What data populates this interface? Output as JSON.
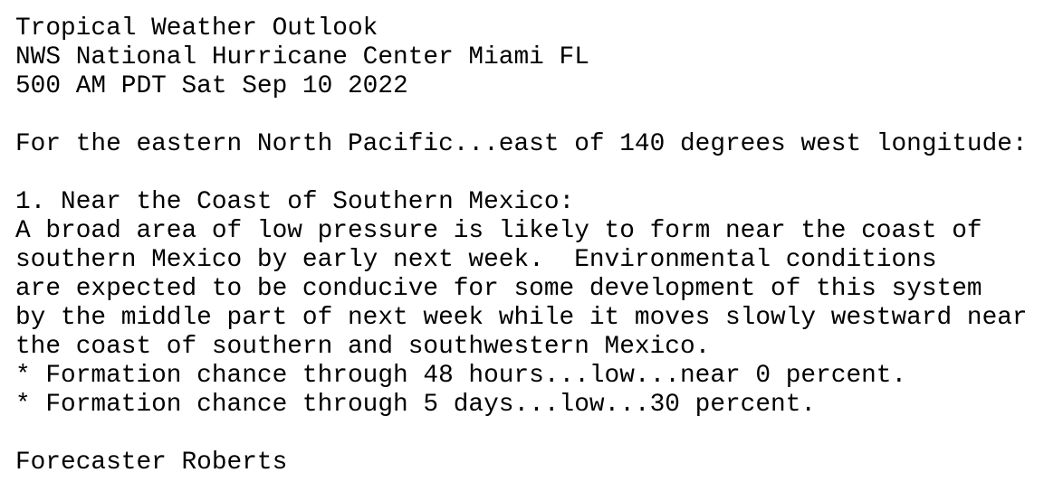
{
  "header": {
    "title": "Tropical Weather Outlook",
    "office": "NWS National Hurricane Center Miami FL",
    "issued": "500 AM PDT Sat Sep 10 2022"
  },
  "scope": "For the eastern North Pacific...east of 140 degrees west longitude:",
  "systems": [
    {
      "heading": "1. Near the Coast of Southern Mexico:",
      "body": [
        "A broad area of low pressure is likely to form near the coast of",
        "southern Mexico by early next week.  Environmental conditions",
        "are expected to be conducive for some development of this system",
        "by the middle part of next week while it moves slowly westward near",
        "the coast of southern and southwestern Mexico."
      ],
      "chances": [
        "* Formation chance through 48 hours...low...near 0 percent.",
        "* Formation chance through 5 days...low...30 percent."
      ]
    }
  ],
  "forecaster": "Forecaster Roberts"
}
